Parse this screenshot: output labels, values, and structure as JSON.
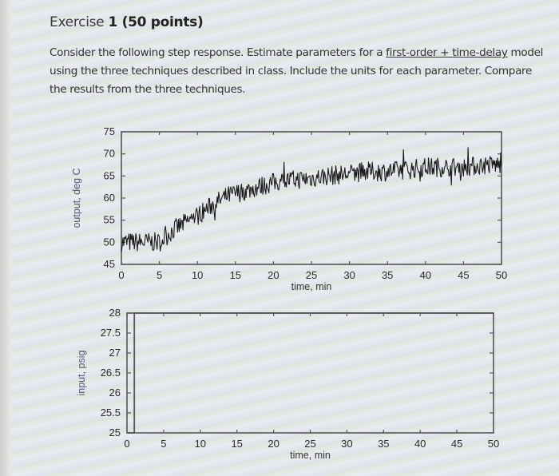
{
  "exercise": {
    "title_prefix": "Exercise ",
    "title_bold": "1 (50 points)",
    "prompt_part1": "Consider the following step response. Estimate parameters for a ",
    "prompt_underlined": "first-order + time-delay",
    "prompt_part2": " model using the three techniques described in class. Include the units for each parameter. Compare the results from the three techniques."
  },
  "chart_data": [
    {
      "type": "line",
      "title": "",
      "xlabel": "time, min",
      "ylabel": "output, deg C",
      "xlim": [
        0,
        50
      ],
      "ylim": [
        45,
        75
      ],
      "xticks": [
        0,
        5,
        10,
        15,
        20,
        25,
        30,
        35,
        40,
        45,
        50
      ],
      "yticks": [
        45,
        50,
        55,
        60,
        65,
        70,
        75
      ],
      "grid": false,
      "legend": null,
      "noise_amplitude": 2,
      "series": [
        {
          "name": "output",
          "x": [
            0,
            2,
            4,
            5,
            6,
            7,
            8,
            10,
            12,
            14,
            15,
            17,
            20,
            22,
            25,
            27,
            30,
            32,
            35,
            38,
            40,
            42,
            45,
            48,
            50
          ],
          "values": [
            50,
            50,
            50,
            50,
            51.5,
            53,
            54,
            56,
            58.5,
            60.5,
            61,
            62,
            63.5,
            64,
            64.5,
            65,
            65.5,
            66,
            66,
            66.5,
            67,
            67,
            67,
            67.5,
            67.5
          ]
        }
      ]
    },
    {
      "type": "line",
      "title": "",
      "xlabel": "time, min",
      "ylabel": "input, psig",
      "xlim": [
        0,
        50
      ],
      "ylim": [
        25,
        28
      ],
      "xticks": [
        0,
        5,
        10,
        15,
        20,
        25,
        30,
        35,
        40,
        45,
        50
      ],
      "yticks": [
        25,
        25.5,
        26,
        26.5,
        27,
        27.5,
        28
      ],
      "ytick_labels": [
        "25",
        "25.5",
        "26",
        "26.5",
        "27",
        "27.5",
        "28"
      ],
      "grid": false,
      "legend": null,
      "series": [
        {
          "name": "input",
          "x": [
            0,
            1,
            1,
            50
          ],
          "values": [
            25,
            25,
            28,
            28
          ]
        }
      ]
    }
  ],
  "colors": {
    "trace": "#1a1a1a",
    "axis": "#555555",
    "ylabel": "#4a5a78"
  }
}
